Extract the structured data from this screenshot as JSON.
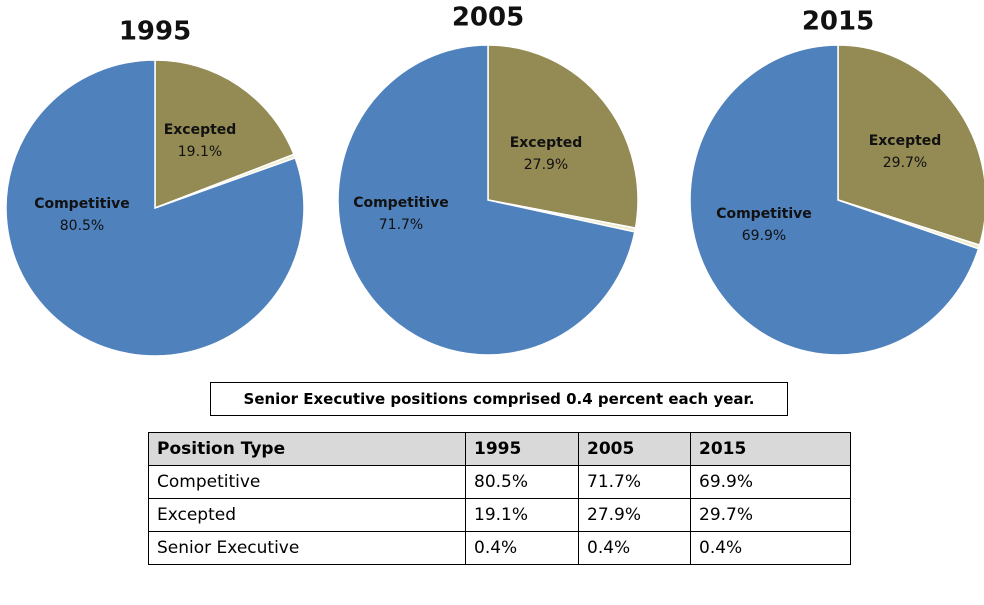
{
  "chart_data": [
    {
      "type": "pie",
      "title": "1995",
      "categories": [
        "Competitive",
        "Excepted",
        null
      ],
      "values": [
        80.5,
        19.1,
        0.4
      ],
      "value_labels": [
        "80.5%",
        "19.1%",
        null
      ],
      "colors": [
        "#4f81bd",
        "#948a54",
        "#eeecce"
      ]
    },
    {
      "type": "pie",
      "title": "2005",
      "categories": [
        "Competitive",
        "Excepted",
        null
      ],
      "values": [
        71.7,
        27.9,
        0.4
      ],
      "value_labels": [
        "71.7%",
        "27.9%",
        null
      ],
      "colors": [
        "#4f81bd",
        "#948a54",
        "#eeecce"
      ]
    },
    {
      "type": "pie",
      "title": "2015",
      "categories": [
        "Competitive",
        "Excepted",
        null
      ],
      "values": [
        69.9,
        29.7,
        0.4
      ],
      "value_labels": [
        "69.9%",
        "29.7%",
        null
      ],
      "colors": [
        "#4f81bd",
        "#948a54",
        "#eeecce"
      ]
    }
  ],
  "note": "Senior Executive positions comprised 0.4 percent each year.",
  "table": {
    "header": [
      "Position Type",
      "1995",
      "2005",
      "2015"
    ],
    "rows": [
      [
        "Competitive",
        "80.5%",
        "71.7%",
        "69.9%"
      ],
      [
        "Excepted",
        "19.1%",
        "27.9%",
        "29.7%"
      ],
      [
        "Senior Executive",
        "0.4%",
        "0.4%",
        "0.4%"
      ]
    ]
  }
}
